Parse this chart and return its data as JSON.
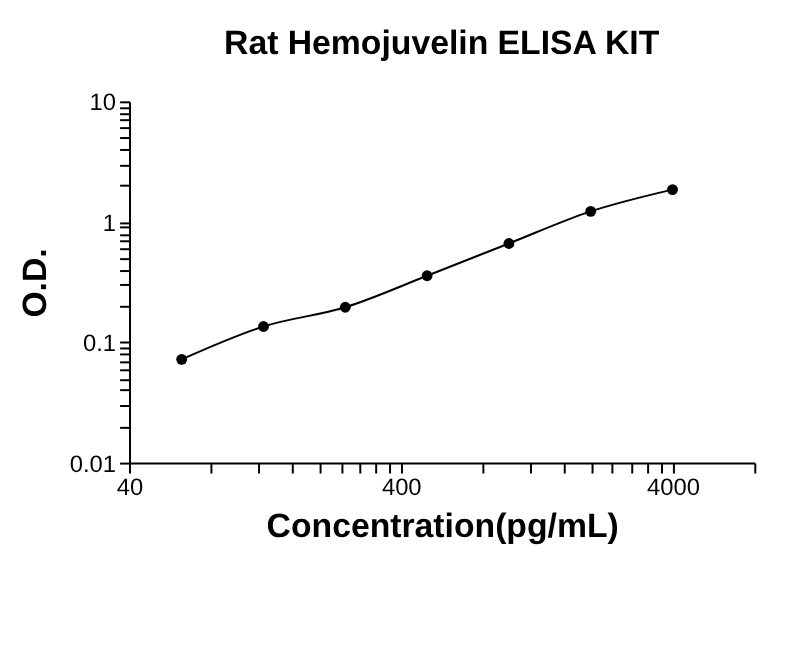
{
  "chart_data": {
    "type": "line",
    "title": "Rat Hemojuvelin ELISA KIT",
    "xlabel": "Concentration(pg/mL)",
    "ylabel": "O.D.",
    "x": [
      62.5,
      125,
      250,
      500,
      1000,
      2000,
      4000
    ],
    "series": [
      {
        "color": "#000000",
        "values": [
          0.072,
          0.135,
          0.195,
          0.356,
          0.66,
          1.22,
          1.85
        ]
      }
    ],
    "log": "xy",
    "marker": "circle",
    "line_style": "solid",
    "grid": false,
    "xlim": [
      40,
      8000
    ],
    "xticks": [
      40,
      {
        "value": 80,
        "label": null
      },
      {
        "value": 120,
        "label": null
      },
      {
        "value": 160,
        "label": null
      },
      {
        "value": 200,
        "label": null
      },
      {
        "value": 240,
        "label": null
      },
      {
        "value": 280,
        "label": null
      },
      {
        "value": 320,
        "label": null
      },
      {
        "value": 360,
        "label": null
      },
      400,
      {
        "value": 800,
        "label": null
      },
      {
        "value": 1200,
        "label": null
      },
      {
        "value": 1600,
        "label": null
      },
      {
        "value": 2000,
        "label": null
      },
      {
        "value": 2400,
        "label": null
      },
      {
        "value": 2800,
        "label": null
      },
      {
        "value": 3200,
        "label": null
      },
      {
        "value": 3600,
        "label": null
      },
      4000,
      {
        "value": 8000,
        "label": null
      }
    ],
    "ylim": [
      0.01,
      10
    ],
    "yticks": [
      0.01,
      {
        "value": 0.02,
        "label": null
      },
      {
        "value": 0.03,
        "label": null
      },
      {
        "value": 0.04,
        "label": null
      },
      {
        "value": 0.05,
        "label": null
      },
      {
        "value": 0.06,
        "label": null
      },
      {
        "value": 0.07,
        "label": null
      },
      {
        "value": 0.08,
        "label": null
      },
      {
        "value": 0.09,
        "label": null
      },
      0.1,
      {
        "value": 0.2,
        "label": null
      },
      {
        "value": 0.3,
        "label": null
      },
      {
        "value": 0.4,
        "label": null
      },
      {
        "value": 0.5,
        "label": null
      },
      {
        "value": 0.6,
        "label": null
      },
      {
        "value": 0.7,
        "label": null
      },
      {
        "value": 0.8,
        "label": null
      },
      {
        "value": 0.9,
        "label": null
      },
      1,
      {
        "value": 2,
        "label": null
      },
      {
        "value": 3,
        "label": null
      },
      {
        "value": 4,
        "label": null
      },
      {
        "value": 5,
        "label": null
      },
      {
        "value": 6,
        "label": null
      },
      {
        "value": 7,
        "label": null
      },
      {
        "value": 8,
        "label": null
      },
      {
        "value": 9,
        "label": null
      },
      10
    ]
  }
}
